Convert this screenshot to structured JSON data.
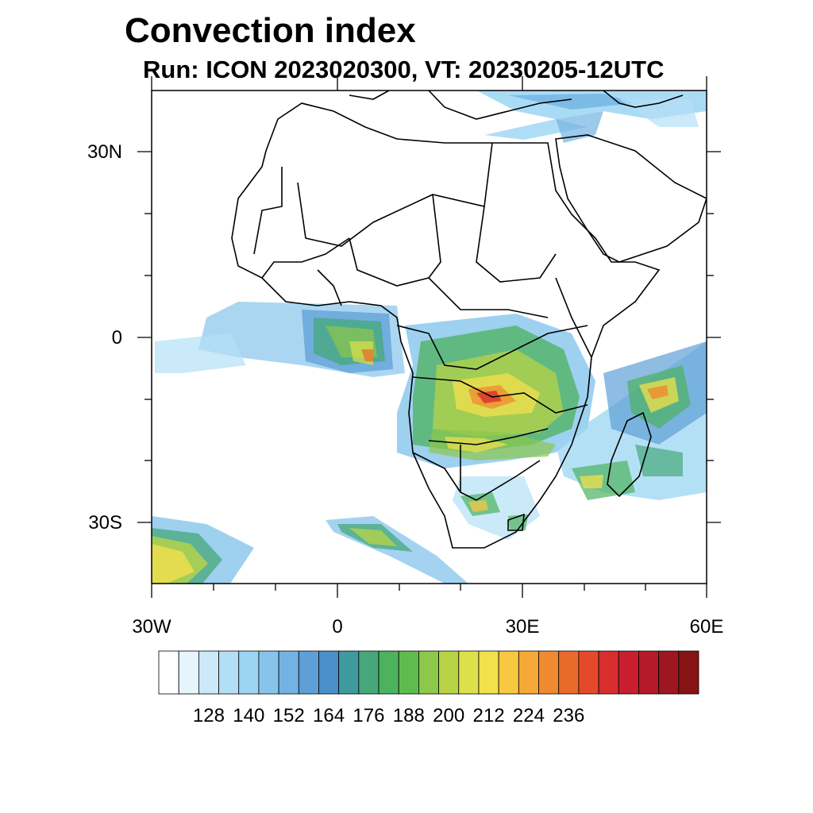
{
  "title": "Convection index",
  "subtitle": "Run: ICON 2023020300,  VT: 20230205-12UTC",
  "axes": {
    "lat_labels": [
      "30N",
      "0",
      "30S"
    ],
    "lon_labels": [
      "30W",
      "0",
      "30E",
      "60E"
    ]
  },
  "colorbar": {
    "labels": [
      "128",
      "140",
      "152",
      "164",
      "176",
      "188",
      "200",
      "212",
      "224",
      "236"
    ],
    "colors": [
      "#ffffff",
      "#e6f4fc",
      "#cde9f8",
      "#b3dff6",
      "#9bd5f3",
      "#86c4ec",
      "#72b3e3",
      "#5e9fd6",
      "#4a8fc8",
      "#3f9aa0",
      "#46a87a",
      "#4cb25e",
      "#60bb4f",
      "#8cc84a",
      "#b8d446",
      "#dde04a",
      "#f2e04c",
      "#f8c840",
      "#f6a838",
      "#f08a30",
      "#ea6a2c",
      "#e34a2a",
      "#d82e2e",
      "#c81e2e",
      "#b41a2a",
      "#9e1620",
      "#861414"
    ]
  },
  "icons": {
    "map": "africa-convection-map"
  }
}
